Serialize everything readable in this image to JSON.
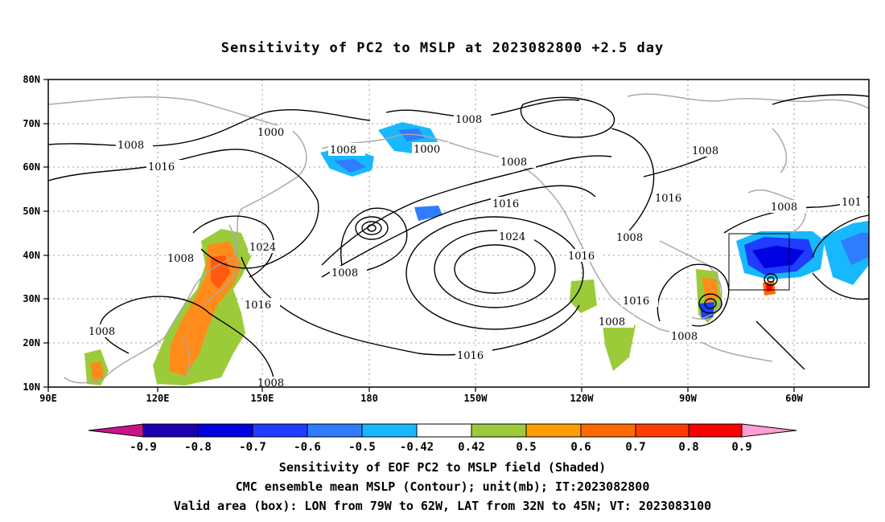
{
  "title": "Sensitivity of PC2 to MSLP at 2023082800 +2.5 day",
  "map": {
    "lat_labels": [
      "80N",
      "70N",
      "60N",
      "50N",
      "40N",
      "30N",
      "20N",
      "10N"
    ],
    "lon_labels": [
      "90E",
      "120E",
      "150E",
      "180",
      "150W",
      "120W",
      "90W",
      "60W"
    ],
    "contour_labels": [
      "1000",
      "1008",
      "1016",
      "1024",
      "1008",
      "1008",
      "1008",
      "1000",
      "1008",
      "1008",
      "1016",
      "1024",
      "1016",
      "1008",
      "1016",
      "1016",
      "1008",
      "1008",
      "1008",
      "1016",
      "1008",
      "101",
      "1008",
      "1016",
      "1008",
      "1008",
      "1008"
    ],
    "valid_box": {
      "lon_west": "79W",
      "lon_east": "62W",
      "lat_south": "32N",
      "lat_north": "45N"
    }
  },
  "colorbar": {
    "labels": [
      "-0.9",
      "-0.8",
      "-0.7",
      "-0.6",
      "-0.5",
      "-0.42",
      "0.42",
      "0.5",
      "0.6",
      "0.7",
      "0.8",
      "0.9"
    ],
    "colors": [
      "#1a00b0",
      "#0000e0",
      "#1f3cff",
      "#2f7cff",
      "#18b8ff",
      "#ffffff",
      "#9ccb3a",
      "#ff9e00",
      "#ff6a00",
      "#ff3c00",
      "#ff0000"
    ],
    "under_color": "#c8148a",
    "over_color": "#ff9ed2"
  },
  "captions": {
    "line1": "Sensitivity of EOF PC2 to MSLP field (Shaded)",
    "line2": "CMC ensemble mean MSLP (Contour); unit(mb); IT:2023082800",
    "line3": "Valid area (box): LON from 79W to 62W, LAT from 32N to 45N; VT: 2023083100"
  }
}
